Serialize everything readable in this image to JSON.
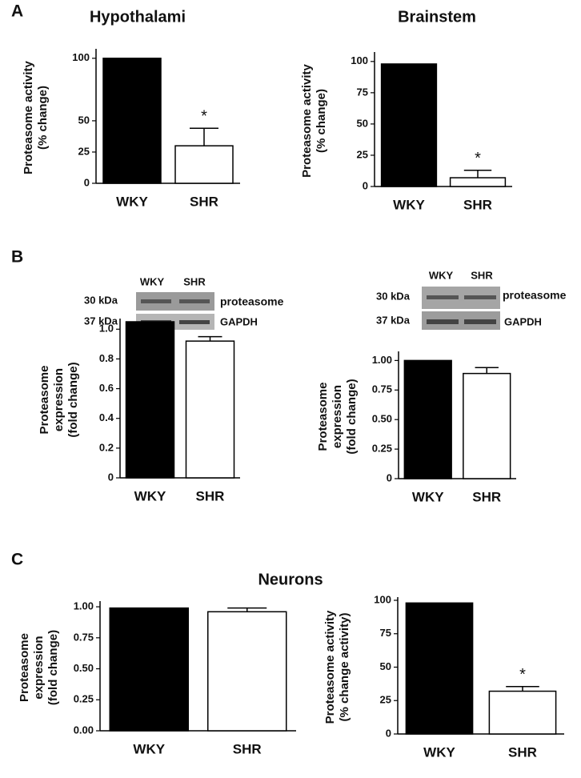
{
  "chart_data": [
    {
      "type": "bar",
      "title": "Hypothalami",
      "ylabel": [
        "Proteasome activity",
        "(% change)"
      ],
      "categories": [
        "WKY",
        "SHR"
      ],
      "values": [
        100,
        30
      ],
      "errors": [
        null,
        14
      ],
      "colors": [
        "#000000",
        "#ffffff"
      ],
      "ylim": [
        0,
        105
      ],
      "yticks": [
        0,
        25,
        50,
        100
      ],
      "annotation": "*"
    },
    {
      "type": "bar",
      "title": "Brainstem",
      "ylabel": [
        "Proteasome activity",
        "(% change)"
      ],
      "categories": [
        "WKY",
        "SHR"
      ],
      "values": [
        98,
        7
      ],
      "errors": [
        null,
        6
      ],
      "colors": [
        "#000000",
        "#ffffff"
      ],
      "ylim": [
        0,
        105
      ],
      "yticks": [
        0,
        25,
        50,
        75,
        100
      ],
      "annotation": "*"
    },
    {
      "type": "bar",
      "ylabel": [
        "Proteasome",
        "expression",
        "(fold change)"
      ],
      "categories": [
        "WKY",
        "SHR"
      ],
      "values": [
        1.05,
        0.92
      ],
      "errors": [
        null,
        0.03
      ],
      "colors": [
        "#000000",
        "#ffffff"
      ],
      "ylim": [
        0,
        1.05
      ],
      "yticks": [
        0,
        0.2,
        0.4,
        0.6,
        0.8,
        {
          "value": 1,
          "label": "1.0"
        }
      ]
    },
    {
      "type": "bar",
      "ylabel": [
        "Proteasome",
        "expression",
        "(fold change)"
      ],
      "categories": [
        "WKY",
        "SHR"
      ],
      "values": [
        1.0,
        0.89
      ],
      "errors": [
        null,
        0.05
      ],
      "colors": [
        "#000000",
        "#ffffff"
      ],
      "ylim": [
        0,
        1.05
      ],
      "yticks": [
        0,
        0.25,
        {
          "value": 0.5,
          "label": "0.50"
        },
        0.75,
        {
          "value": 1,
          "label": "1.00"
        }
      ]
    },
    {
      "type": "bar",
      "ylabel": [
        "Proteasome",
        "expression",
        "(fold change)"
      ],
      "categories": [
        "WKY",
        "SHR"
      ],
      "values": [
        0.99,
        0.96
      ],
      "errors": [
        null,
        0.03
      ],
      "colors": [
        "#000000",
        "#ffffff"
      ],
      "ylim": [
        0,
        1.02
      ],
      "yticks": [
        {
          "value": 0,
          "label": "0.00"
        },
        0.25,
        {
          "value": 0.5,
          "label": "0.50"
        },
        0.75,
        {
          "value": 1,
          "label": "1.00"
        }
      ]
    },
    {
      "type": "bar",
      "ylabel": [
        "Proteasome activity",
        "(% change activity)"
      ],
      "categories": [
        "WKY",
        "SHR"
      ],
      "values": [
        98,
        32
      ],
      "errors": [
        null,
        3.5
      ],
      "colors": [
        "#000000",
        "#ffffff"
      ],
      "ylim": [
        0,
        100
      ],
      "yticks": [
        0,
        25,
        50,
        75,
        100
      ],
      "annotation": "*"
    }
  ],
  "figure": {
    "panel_labels": [
      "A",
      "B",
      "C"
    ],
    "section_title": "Neurons",
    "blots": [
      {
        "lanes": [
          "WKY",
          "SHR"
        ],
        "markers": [
          "30 kDa",
          "37 kDa"
        ],
        "bands": [
          "proteasome",
          "GAPDH"
        ]
      },
      {
        "lanes": [
          "WKY",
          "SHR"
        ],
        "markers": [
          "30 kDa",
          "37 kDa"
        ],
        "bands": [
          "proteasome",
          "GAPDH"
        ]
      }
    ]
  }
}
